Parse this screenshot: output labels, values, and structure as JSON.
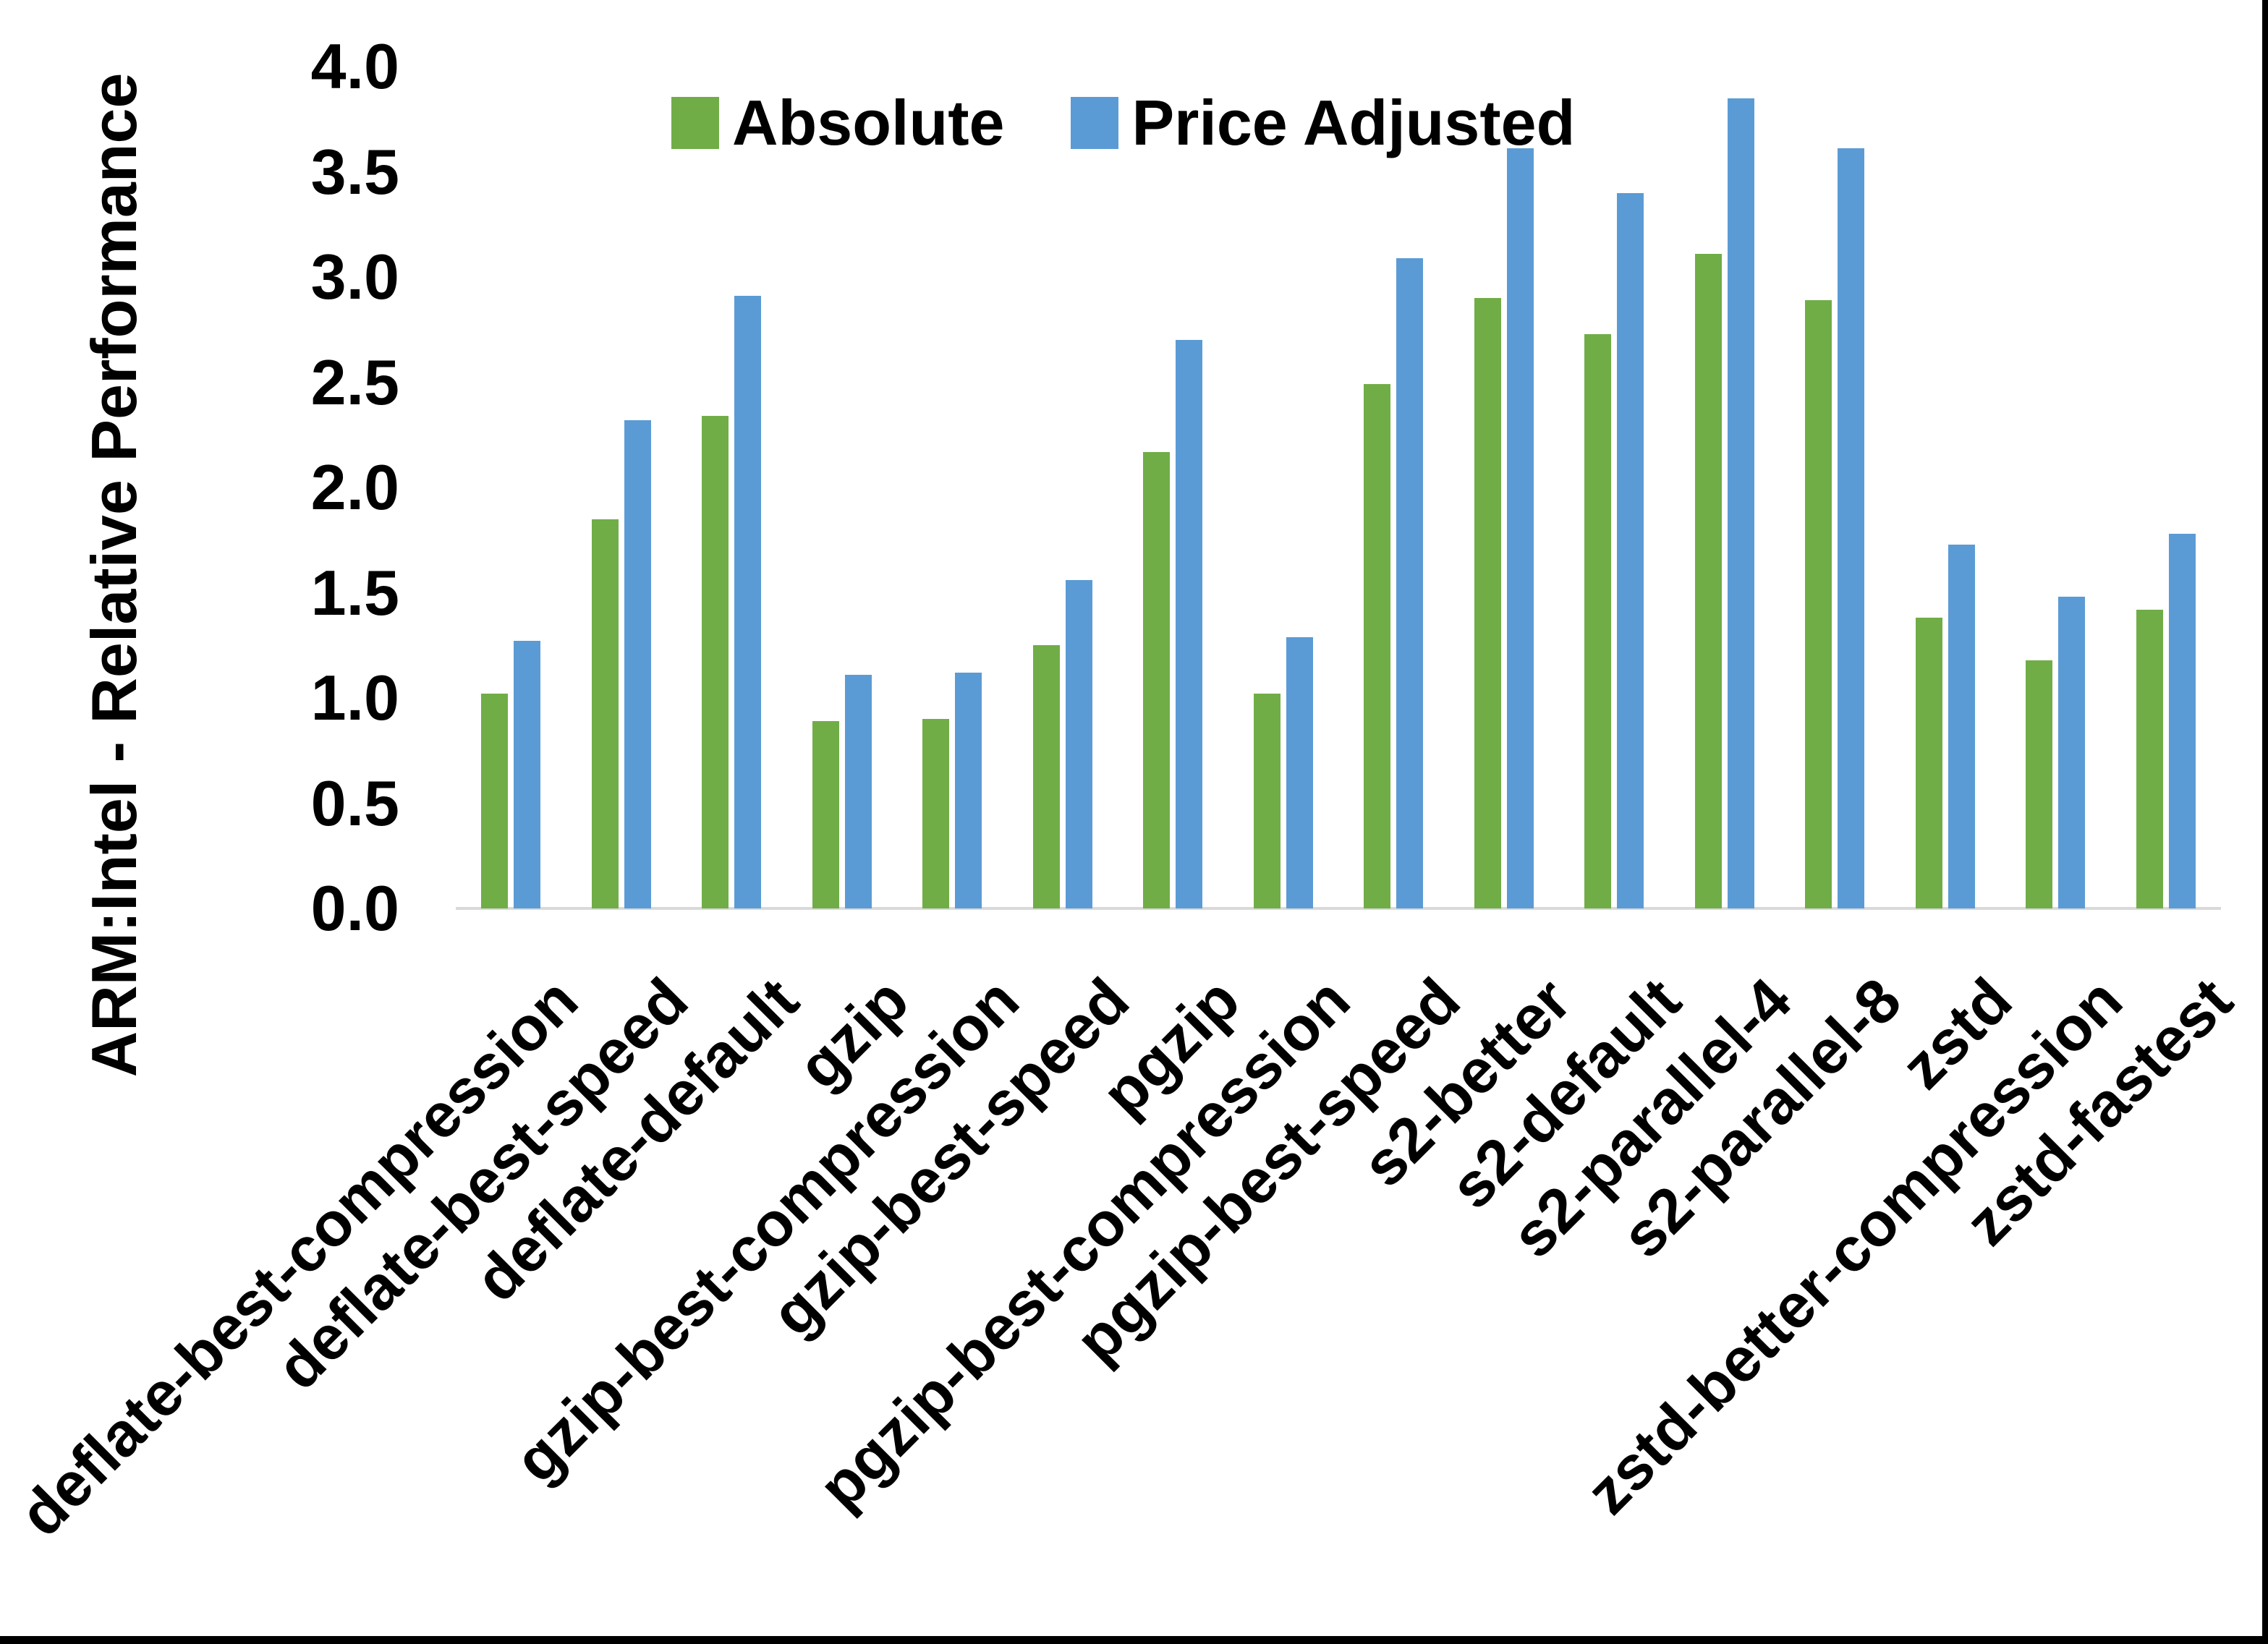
{
  "chart_data": {
    "type": "bar",
    "title": "",
    "xlabel": "",
    "ylabel": "ARM:Intel - Relative Performance",
    "ylim": [
      0.0,
      4.0
    ],
    "ytick_step": 0.5,
    "ytick_labels": [
      "0.0",
      "0.5",
      "1.0",
      "1.5",
      "2.0",
      "2.5",
      "3.0",
      "3.5",
      "4.0"
    ],
    "grid": false,
    "legend_position": "top-center",
    "axis_line_color": "#D9D9D9",
    "categories": [
      "deflate-best-compression",
      "deflate-best-speed",
      "deflate-default",
      "gzip",
      "gzip-best-compression",
      "gzip-best-speed",
      "pgzip",
      "pgzip-best-compression",
      "pgzip-best-speed",
      "s2-better",
      "s2-default",
      "s2-parallel-4",
      "s2-parallel-8",
      "zstd",
      "zstd-better-compression",
      "zstd-fastest"
    ],
    "series": [
      {
        "name": "Absolute",
        "color": "#70AD47",
        "values": [
          1.02,
          1.85,
          2.34,
          0.89,
          0.9,
          1.25,
          2.17,
          1.02,
          2.49,
          2.9,
          2.73,
          3.11,
          2.89,
          1.38,
          1.18,
          1.42
        ]
      },
      {
        "name": "Price Adjusted",
        "color": "#5B9BD5",
        "values": [
          1.27,
          2.32,
          2.91,
          1.11,
          1.12,
          1.56,
          2.7,
          1.29,
          3.09,
          3.61,
          3.4,
          3.85,
          3.61,
          1.73,
          1.48,
          1.78
        ]
      }
    ]
  }
}
